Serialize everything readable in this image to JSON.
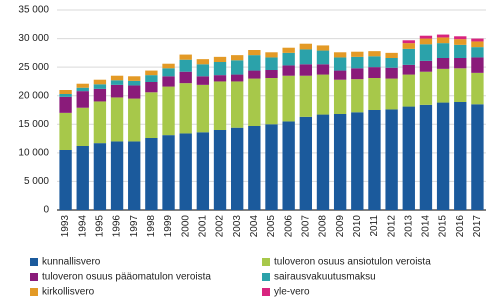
{
  "chart_data": {
    "type": "stacked_bar",
    "categories": [
      "1993",
      "1994",
      "1995",
      "1996",
      "1997",
      "1998",
      "1999",
      "2000",
      "2001",
      "2002",
      "2003",
      "2004",
      "2005",
      "2006",
      "2007",
      "2008",
      "2009",
      "2010",
      "2011",
      "2012",
      "2013",
      "2014",
      "2015",
      "2016",
      "2017"
    ],
    "series": [
      {
        "name": "kunnallisvero",
        "color": "#1b5a9c",
        "values": [
          10500,
          11200,
          11700,
          12000,
          12000,
          12600,
          13100,
          13400,
          13600,
          14000,
          14400,
          14700,
          15000,
          15500,
          16300,
          16700,
          16800,
          17100,
          17500,
          17600,
          18100,
          18400,
          18800,
          18900,
          18500
        ]
      },
      {
        "name": "tuloveron osuus ansiotulon veroista",
        "color": "#a7c84a",
        "values": [
          6500,
          6700,
          7300,
          7700,
          7500,
          8000,
          8500,
          8800,
          8300,
          8500,
          8100,
          8300,
          8100,
          8000,
          7200,
          7000,
          6000,
          5800,
          5600,
          5400,
          5600,
          5800,
          5900,
          5900,
          5500
        ]
      },
      {
        "name": "tuloveron osuus pääomatulon veroista",
        "color": "#8a1b7a",
        "values": [
          2800,
          2900,
          2200,
          2200,
          2300,
          1800,
          1800,
          2000,
          1500,
          1100,
          1200,
          1400,
          1400,
          1800,
          2000,
          1800,
          1600,
          1900,
          1900,
          1900,
          1700,
          1900,
          1900,
          1800,
          2700
        ]
      },
      {
        "name": "sairausvakuutusmaksu",
        "color": "#2ba2aa",
        "values": [
          500,
          600,
          800,
          800,
          800,
          1200,
          1400,
          2100,
          2100,
          2300,
          2500,
          2700,
          2200,
          2200,
          2600,
          2400,
          2300,
          2000,
          1900,
          1700,
          2800,
          2900,
          2600,
          2300,
          1800
        ]
      },
      {
        "name": "kirkollisvero",
        "color": "#e39a26",
        "values": [
          700,
          700,
          800,
          800,
          800,
          800,
          800,
          900,
          900,
          900,
          900,
          900,
          900,
          900,
          1000,
          900,
          900,
          900,
          900,
          900,
          1000,
          1000,
          1000,
          1000,
          1000
        ]
      },
      {
        "name": "yle-vero",
        "color": "#d8247f",
        "values": [
          null,
          null,
          null,
          null,
          null,
          null,
          null,
          null,
          null,
          null,
          null,
          null,
          null,
          null,
          null,
          null,
          null,
          null,
          null,
          null,
          500,
          500,
          500,
          500,
          500
        ]
      }
    ],
    "ylim": [
      0,
      35000
    ],
    "yticks": [
      0,
      {
        "value": 5000,
        "label": "5 000"
      },
      {
        "value": 10000,
        "label": "10 000"
      },
      {
        "value": 15000,
        "label": "15 000"
      },
      {
        "value": 20000,
        "label": "20 000"
      },
      {
        "value": 25000,
        "label": "25 000"
      },
      {
        "value": 30000,
        "label": "30 000"
      },
      {
        "value": 35000,
        "label": "35 000"
      }
    ],
    "grid": true
  }
}
